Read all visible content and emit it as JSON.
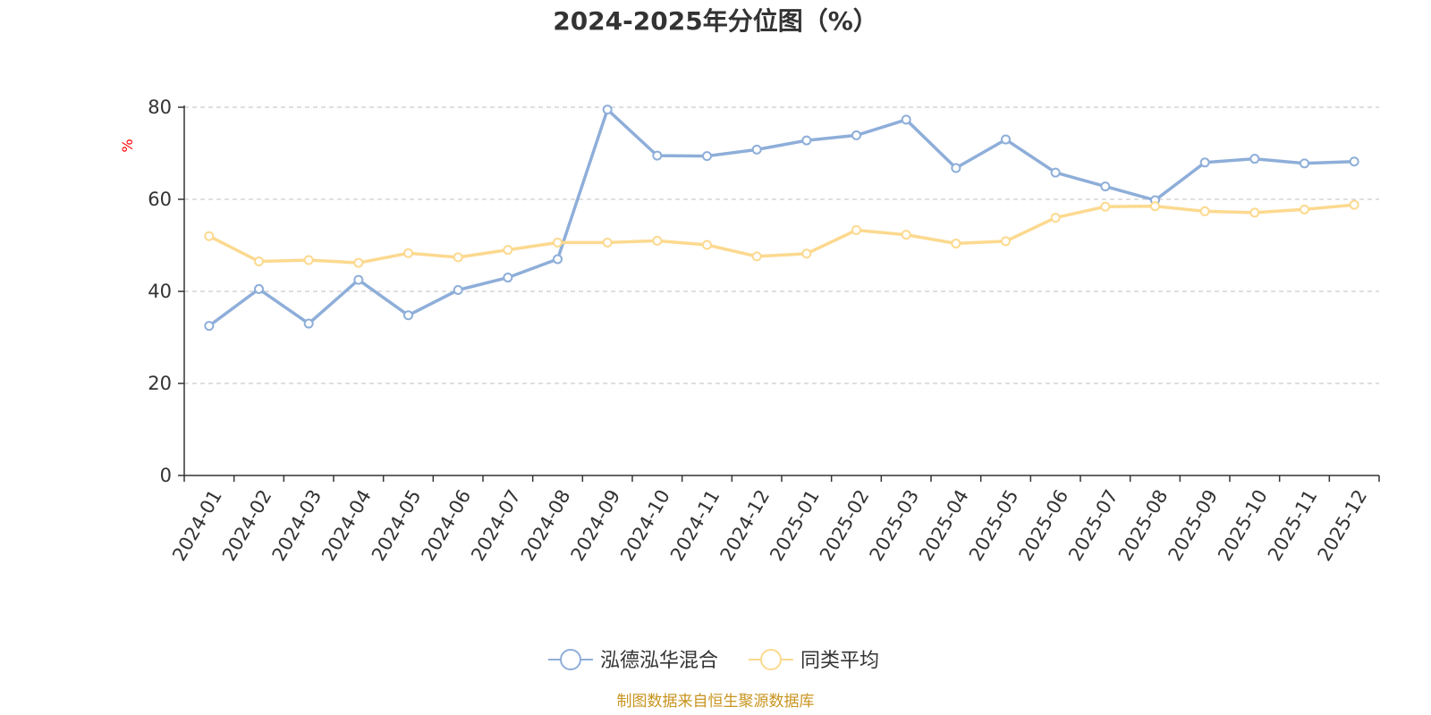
{
  "chart_data": {
    "type": "line",
    "title": "2024-2025年分位图（%）",
    "ylabel": "%",
    "ylim": [
      0,
      80
    ],
    "yticks": [
      0,
      20,
      40,
      60,
      80
    ],
    "grid": true,
    "legend_position": "bottom",
    "categories": [
      "2024-01",
      "2024-02",
      "2024-03",
      "2024-04",
      "2024-05",
      "2024-06",
      "2024-07",
      "2024-08",
      "2024-09",
      "2024-10",
      "2024-11",
      "2024-12",
      "2025-01",
      "2025-02",
      "2025-03",
      "2025-04",
      "2025-05",
      "2025-06",
      "2025-07",
      "2025-08",
      "2025-09",
      "2025-10",
      "2025-11",
      "2025-12"
    ],
    "series": [
      {
        "name": "泓德泓华混合",
        "color": "#8eaed9",
        "values": [
          32.5,
          40.5,
          33.0,
          42.5,
          34.8,
          40.3,
          43.0,
          47.0,
          79.5,
          69.5,
          69.4,
          70.8,
          72.8,
          73.9,
          77.3,
          66.8,
          73.0,
          65.8,
          62.8,
          59.8,
          68.0,
          68.8,
          67.8,
          68.2
        ]
      },
      {
        "name": "同类平均",
        "color": "#fcd98f",
        "values": [
          52.0,
          46.5,
          46.8,
          46.2,
          48.3,
          47.4,
          49.0,
          50.6,
          50.6,
          51.0,
          50.1,
          47.6,
          48.2,
          53.3,
          52.3,
          50.4,
          50.9,
          56.0,
          58.4,
          58.5,
          57.4,
          57.1,
          57.8,
          58.8
        ]
      }
    ],
    "source": "制图数据来自恒生聚源数据库",
    "colors": {
      "axis": "#333333",
      "grid": "#cccccc",
      "ylabel": "#ff0000",
      "source": "#c8941f"
    }
  }
}
